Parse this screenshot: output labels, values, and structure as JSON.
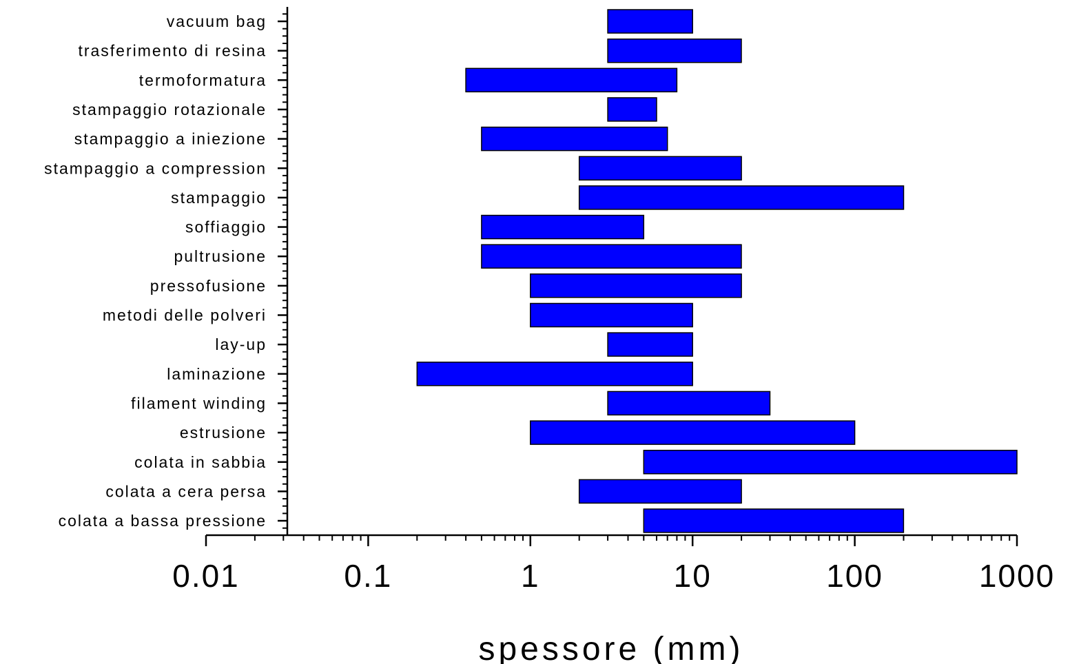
{
  "chart_data": {
    "type": "bar",
    "orientation": "horizontal",
    "scale_x": "log",
    "xlabel": "spessore (mm)",
    "ylabel": "",
    "title": "",
    "xlim": [
      0.01,
      1000
    ],
    "x_ticks": [
      "0.01",
      "0.1",
      "1",
      "10",
      "100",
      "1000"
    ],
    "grid": false,
    "bar_color": "#0000FF",
    "categories": [
      "vacuum bag",
      "trasferimento di resina",
      "termoformatura",
      "stampaggio rotazionale",
      "stampaggio a iniezione",
      "stampaggio a compression",
      "stampaggio",
      "soffiaggio",
      "pultrusione",
      "pressofusione",
      "metodi delle polveri",
      "lay-up",
      "laminazione",
      "filament winding",
      "estrusione",
      "colata in sabbia",
      "colata a cera persa",
      "colata a bassa pressione"
    ],
    "ranges": [
      [
        3,
        10
      ],
      [
        3,
        20
      ],
      [
        0.4,
        8
      ],
      [
        3,
        6
      ],
      [
        0.5,
        7
      ],
      [
        2,
        20
      ],
      [
        2,
        200
      ],
      [
        0.5,
        5
      ],
      [
        0.5,
        20
      ],
      [
        1,
        20
      ],
      [
        1,
        10
      ],
      [
        3,
        10
      ],
      [
        0.2,
        10
      ],
      [
        3,
        30
      ],
      [
        1,
        100
      ],
      [
        5,
        1000
      ],
      [
        2,
        20
      ],
      [
        5,
        200
      ]
    ]
  }
}
